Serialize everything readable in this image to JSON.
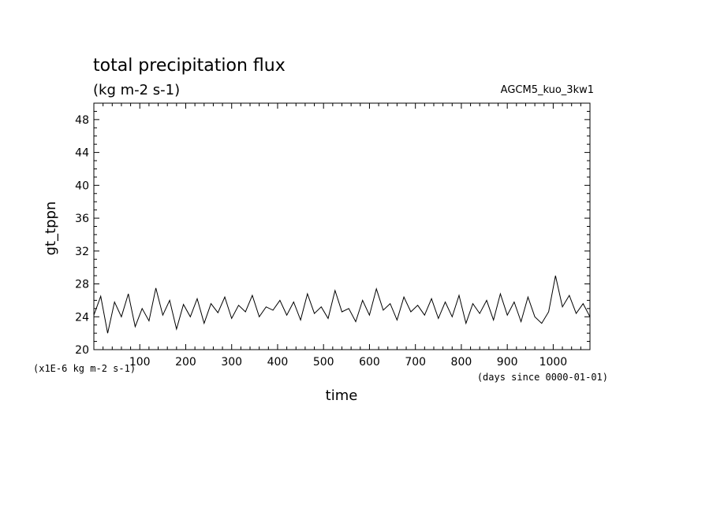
{
  "chart_data": {
    "type": "line",
    "title": "total precipitation flux",
    "subtitle": "(kg m-2 s-1)",
    "run_label": "AGCM5_kuo_3kw1",
    "ylabel": "gt_tppn",
    "xlabel": "time",
    "y_unit_note": "(x1E-6 kg m-2 s-1)",
    "x_unit_note": "(days since 0000-01-01)",
    "xlim": [
      0,
      1080
    ],
    "ylim": [
      20,
      50
    ],
    "x_ticks": [
      100,
      200,
      300,
      400,
      500,
      600,
      700,
      800,
      900,
      1000
    ],
    "y_ticks": [
      20,
      24,
      28,
      32,
      36,
      40,
      44,
      48
    ],
    "grid": false,
    "series": [
      {
        "x": [
          0,
          15,
          30,
          45,
          60,
          75,
          90,
          105,
          120,
          135,
          150,
          165,
          180,
          195,
          210,
          225,
          240,
          255,
          270,
          285,
          300,
          315,
          330,
          345,
          360,
          375,
          390,
          405,
          420,
          435,
          450,
          465,
          480,
          495,
          510,
          525,
          540,
          555,
          570,
          585,
          600,
          615,
          630,
          645,
          660,
          675,
          690,
          705,
          720,
          735,
          750,
          765,
          780,
          795,
          810,
          825,
          840,
          855,
          870,
          885,
          900,
          915,
          930,
          945,
          960,
          975,
          990,
          1005,
          1020,
          1035,
          1050,
          1065,
          1080
        ],
        "y": [
          24.2,
          26.5,
          22.0,
          25.8,
          24.0,
          26.8,
          22.8,
          25.0,
          23.5,
          27.5,
          24.2,
          26.0,
          22.5,
          25.5,
          24.0,
          26.2,
          23.2,
          25.6,
          24.5,
          26.4,
          23.8,
          25.4,
          24.6,
          26.6,
          24.0,
          25.2,
          24.8,
          26.0,
          24.2,
          25.8,
          23.6,
          26.8,
          24.4,
          25.2,
          23.8,
          27.2,
          24.6,
          25.0,
          23.4,
          26.0,
          24.2,
          27.4,
          24.8,
          25.6,
          23.6,
          26.4,
          24.6,
          25.4,
          24.2,
          26.2,
          23.8,
          25.8,
          24.0,
          26.6,
          23.2,
          25.6,
          24.4,
          26.0,
          23.6,
          26.8,
          24.2,
          25.8,
          23.4,
          26.4,
          24.0,
          23.2,
          24.6,
          29.0,
          25.2,
          26.6,
          24.4,
          25.6,
          24.0
        ]
      }
    ]
  }
}
